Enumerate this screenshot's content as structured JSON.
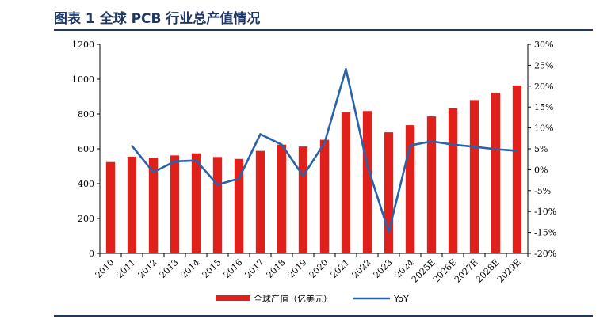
{
  "figure": {
    "title": "图表 1   全球 PCB 行业总产值情况"
  },
  "chart_data": {
    "type": "bar",
    "categories": [
      "2010",
      "2011",
      "2012",
      "2013",
      "2014",
      "2015",
      "2016",
      "2017",
      "2018",
      "2019",
      "2020",
      "2021",
      "2022",
      "2023",
      "2024",
      "2025E",
      "2026E",
      "2027E",
      "2028E",
      "2029E"
    ],
    "series": [
      {
        "name": "全球产值（亿美元）",
        "type": "bar",
        "axis": "left",
        "color": "#e0201b",
        "values": [
          524,
          555,
          549,
          562,
          574,
          553,
          542,
          588,
          624,
          613,
          652,
          809,
          817,
          695,
          736,
          786,
          833,
          880,
          923,
          964
        ]
      },
      {
        "name": "YoY",
        "type": "line",
        "axis": "right",
        "color": "#2a62a8",
        "values": [
          null,
          5.7,
          -0.6,
          2.0,
          2.2,
          -3.6,
          -2.1,
          8.5,
          6.0,
          -1.5,
          6.4,
          24.1,
          1.0,
          -14.9,
          5.8,
          6.8,
          6.0,
          5.5,
          4.9,
          4.5
        ]
      }
    ],
    "y_left": {
      "min": 0,
      "max": 1200,
      "ticks": [
        "0",
        "200",
        "400",
        "600",
        "800",
        "1000",
        "1200"
      ]
    },
    "y_right": {
      "min": -20,
      "max": 30,
      "ticks": [
        "-20%",
        "-15%",
        "-10%",
        "-5%",
        "0%",
        "5%",
        "10%",
        "15%",
        "20%",
        "25%",
        "30%"
      ]
    },
    "legend": {
      "position": "bottom",
      "entries": [
        "全球产值（亿美元）",
        "YoY"
      ]
    }
  }
}
